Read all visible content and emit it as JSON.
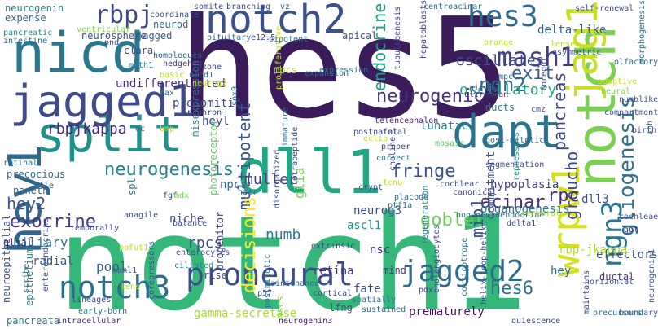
{
  "words": [
    {
      "text": "hes5",
      "color": "#3b1c5a"
    },
    {
      "text": "notch1",
      "color": "#35b779"
    },
    {
      "text": "split",
      "color": "#21918c"
    },
    {
      "text": "jagged1",
      "color": "#3e4a89"
    },
    {
      "text": "notch2",
      "color": "#3b518b"
    },
    {
      "text": "nicd",
      "color": "#2a788e"
    },
    {
      "text": "dll1",
      "color": "#22a785"
    },
    {
      "text": "dapt",
      "color": "#2c728e"
    },
    {
      "text": "hey1",
      "color": "#31668e"
    },
    {
      "text": "notch3",
      "color": "#2d708e"
    },
    {
      "text": "proneural",
      "color": "#3d4e8a"
    },
    {
      "text": "jagged2",
      "color": "#2f6c8e"
    },
    {
      "text": "wrpw1",
      "color": "#d5e21a"
    },
    {
      "text": "notch",
      "color": "#7ad151"
    },
    {
      "text": "jag1",
      "color": "#c8e020"
    },
    {
      "text": "hes3",
      "color": "#31688e"
    },
    {
      "text": "rbpj",
      "color": "#3e4989"
    },
    {
      "text": "mash1",
      "color": "#443983"
    },
    {
      "text": "ngn3",
      "color": "#2a768e"
    },
    {
      "text": "neurogenesis",
      "color": "#26828e"
    },
    {
      "text": "neurogenic",
      "color": "#46327e"
    },
    {
      "text": "exocrine",
      "color": "#453781"
    },
    {
      "text": "hey2",
      "color": "#3b528b"
    },
    {
      "text": "rbpjkappa",
      "color": "#482878"
    },
    {
      "text": "multipotent",
      "color": "#39568c"
    },
    {
      "text": "endocrine",
      "color": "#1f9e89"
    },
    {
      "text": "gliogenesis",
      "color": "#2e6e8e"
    },
    {
      "text": "pancreas",
      "color": "#3f4788"
    },
    {
      "text": "ngn2",
      "color": "#31688e"
    },
    {
      "text": "exit",
      "color": "#34618d"
    },
    {
      "text": "oscillatory",
      "color": "#22a884"
    },
    {
      "text": "oscillates",
      "color": "#3d4e8a"
    },
    {
      "text": "delta-like",
      "color": "#355f8d"
    },
    {
      "text": "decisions",
      "color": "#fde725"
    },
    {
      "text": "groucho",
      "color": "#404688"
    },
    {
      "text": "rpc",
      "color": "#472d7b"
    },
    {
      "text": "acinar",
      "color": "#472c7a"
    },
    {
      "text": "fringe",
      "color": "#3b518b"
    },
    {
      "text": "goblet",
      "color": "#6ccd5a"
    },
    {
      "text": "numb",
      "color": "#29798e"
    },
    {
      "text": "glia",
      "color": "#75d054"
    },
    {
      "text": "muller",
      "color": "#433e85"
    },
    {
      "text": "mib1",
      "color": "#3d4d8a"
    },
    {
      "text": "hes6",
      "color": "#2d708e"
    },
    {
      "text": "rpcs",
      "color": "#3b528b"
    },
    {
      "text": "lunatic",
      "color": "#25838e"
    },
    {
      "text": "undifferentiated",
      "color": "#472d7b"
    },
    {
      "text": "neuroepithelial",
      "color": "#3b518b"
    },
    {
      "text": "pool",
      "color": "#345e8d"
    },
    {
      "text": "biliary",
      "color": "#2c728e"
    },
    {
      "text": "radial",
      "color": "#375a8c"
    },
    {
      "text": "presomitic",
      "color": "#3f4889"
    },
    {
      "text": "ductal",
      "color": "#46337f"
    },
    {
      "text": "effectors",
      "color": "#3b528b"
    },
    {
      "text": "ascl1",
      "color": "#1f988b"
    },
    {
      "text": "fate",
      "color": "#3e4a89"
    },
    {
      "text": "gamma-secretase",
      "color": "#a8db34"
    },
    {
      "text": "pancreata",
      "color": "#287c8e"
    },
    {
      "text": "prematurely",
      "color": "#471063"
    },
    {
      "text": "heyl",
      "color": "#3e4989"
    },
    {
      "text": "clara",
      "color": "#3f4889"
    },
    {
      "text": "mpcs",
      "color": "#b4de2c"
    },
    {
      "text": "dll3",
      "color": "#3b528b"
    },
    {
      "text": "commitment",
      "color": "#3b518b"
    },
    {
      "text": "organogenesis",
      "color": "#2c728e"
    },
    {
      "text": "hypoplasia",
      "color": "#424086"
    },
    {
      "text": "nscs",
      "color": "#8ed645"
    },
    {
      "text": "neurog3",
      "color": "#3e4c8a"
    },
    {
      "text": "nsc",
      "color": "#472f7d"
    },
    {
      "text": "retina",
      "color": "#443a83"
    },
    {
      "text": "progenitor",
      "color": "#414487"
    },
    {
      "text": "mind",
      "color": "#453882"
    },
    {
      "text": "lfng",
      "color": "#39568c"
    },
    {
      "text": "rbp-jkappa",
      "color": "#addc30"
    },
    {
      "text": "hey",
      "color": "#31688e"
    },
    {
      "text": "precocious",
      "color": "#2e6f8e"
    },
    {
      "text": "paneth",
      "color": "#31668e"
    },
    {
      "text": "glial",
      "color": "#46307e"
    },
    {
      "text": "niche",
      "color": "#3f4889"
    },
    {
      "text": "npcs",
      "color": "#306a8e"
    },
    {
      "text": "spl",
      "color": "#2d718e"
    },
    {
      "text": "sox9",
      "color": "#2c738e"
    },
    {
      "text": "fgf",
      "color": "#3f4788"
    },
    {
      "text": "retinal",
      "color": "#2d718e"
    },
    {
      "text": "tle",
      "color": "#3b528b"
    },
    {
      "text": "neurogenin",
      "color": "#25848e"
    },
    {
      "text": "expense",
      "color": "#31678e"
    },
    {
      "text": "pancreatic",
      "color": "#238a8d"
    },
    {
      "text": "neurosphere",
      "color": "#3b528b"
    },
    {
      "text": "neurod",
      "color": "#2e6d8e"
    },
    {
      "text": "jagged",
      "color": "#375b8d"
    },
    {
      "text": "math1",
      "color": "#26818e"
    },
    {
      "text": "homologues",
      "color": "#31678e"
    },
    {
      "text": "hedgehog",
      "color": "#433e85"
    },
    {
      "text": "basic",
      "color": "#bddf26"
    },
    {
      "text": "apical",
      "color": "#3b528b"
    },
    {
      "text": "ducts",
      "color": "#2a778e"
    },
    {
      "text": "bipotent",
      "color": "#2d708e"
    },
    {
      "text": "e12.5",
      "color": "#404688"
    },
    {
      "text": "zone",
      "color": "#3f4889"
    },
    {
      "text": "expansion",
      "color": "#31688e"
    },
    {
      "text": "self-renewal",
      "color": "#3e4a89"
    },
    {
      "text": "centroacinar",
      "color": "#2e6e8e"
    },
    {
      "text": "hepatoblasts",
      "color": "#45377f"
    },
    {
      "text": "orange",
      "color": "#c2df23"
    },
    {
      "text": "ultradian",
      "color": "#472d7b"
    },
    {
      "text": "telencephalon",
      "color": "#482173"
    },
    {
      "text": "crypt",
      "color": "#3c4f8a"
    },
    {
      "text": "segmentation",
      "color": "#3e4a89"
    },
    {
      "text": "morphogenesis",
      "color": "#2e6e8e"
    },
    {
      "text": "numblike",
      "color": "#3b528b"
    },
    {
      "text": "repressors",
      "color": "#21908d"
    },
    {
      "text": "proper",
      "color": "#3f4889"
    },
    {
      "text": "mosaic",
      "color": "#5ec962"
    },
    {
      "text": "post-mitotic",
      "color": "#31678e"
    },
    {
      "text": "compartment",
      "color": "#3b528b"
    },
    {
      "text": "birth",
      "color": "#414487"
    },
    {
      "text": "fetal",
      "color": "#3e4989"
    },
    {
      "text": "correct",
      "color": "#2c728e"
    },
    {
      "text": "placode",
      "color": "#31678e"
    },
    {
      "text": "cochlear",
      "color": "#3b528b"
    },
    {
      "text": "canonical",
      "color": "#414487"
    },
    {
      "text": "non-neuroendocrine",
      "color": "#31688e"
    },
    {
      "text": "delta1",
      "color": "#3e4989"
    },
    {
      "text": "cerebral",
      "color": "#a5db36"
    },
    {
      "text": "regeneration",
      "color": "#26828e"
    },
    {
      "text": "helix-loop-helix",
      "color": "#3b528b"
    },
    {
      "text": "corticotrope",
      "color": "#2c728e"
    },
    {
      "text": "cholangiocytes",
      "color": "#414487"
    },
    {
      "text": "pdx1",
      "color": "#3e4989"
    },
    {
      "text": "horizontal",
      "color": "#3b528b"
    },
    {
      "text": "maintains",
      "color": "#414487"
    },
    {
      "text": "boundary",
      "color": "#3b528b"
    },
    {
      "text": "quiescence",
      "color": "#3e4a89"
    },
    {
      "text": "neurogenin3",
      "color": "#482173"
    },
    {
      "text": "spatially",
      "color": "#2c728e"
    },
    {
      "text": "sustained",
      "color": "#31678e"
    },
    {
      "text": "intracellular",
      "color": "#46327e"
    },
    {
      "text": "lineages",
      "color": "#414487"
    },
    {
      "text": "early-born",
      "color": "#2c728e"
    },
    {
      "text": "corepressors",
      "color": "#3b528b"
    },
    {
      "text": "ciliated",
      "color": "#26828e"
    },
    {
      "text": "rise",
      "color": "#3e4989"
    },
    {
      "text": "enterocytes",
      "color": "#3b528b"
    },
    {
      "text": "extrinsic",
      "color": "#414487"
    },
    {
      "text": "maintenance",
      "color": "#31688e"
    },
    {
      "text": "p57",
      "color": "#3b528b"
    },
    {
      "text": "cortical",
      "color": "#414487"
    },
    {
      "text": "postmitotic",
      "color": "#2c728e"
    },
    {
      "text": "disorganized",
      "color": "#3e4a89"
    },
    {
      "text": "tetrapeptide",
      "color": "#3b528b"
    },
    {
      "text": "immature",
      "color": "#2e6e8e"
    },
    {
      "text": "maml1",
      "color": "#3b528b"
    },
    {
      "text": "pofut1",
      "color": "#c2df23"
    },
    {
      "text": "lens",
      "color": "#b8de29"
    },
    {
      "text": "epithelium",
      "color": "#238a8d"
    },
    {
      "text": "balance",
      "color": "#3e4a89"
    },
    {
      "text": "temporally",
      "color": "#3f4889"
    },
    {
      "text": "photoreceptor",
      "color": "#5ec962"
    },
    {
      "text": "hair",
      "color": "#31678e"
    },
    {
      "text": "misexpression",
      "color": "#26818e"
    },
    {
      "text": "ventricular",
      "color": "#7ad151"
    },
    {
      "text": "intestine",
      "color": "#31678e"
    },
    {
      "text": "coordinate",
      "color": "#3b528b"
    },
    {
      "text": "somite",
      "color": "#414487"
    },
    {
      "text": "branching",
      "color": "#3e4a89"
    },
    {
      "text": "pituitary",
      "color": "#31678e"
    },
    {
      "text": "neurog2",
      "color": "#b8de29"
    },
    {
      "text": "nicd1",
      "color": "#31678e"
    },
    {
      "text": "rax",
      "color": "#2c728e"
    },
    {
      "text": "nephron",
      "color": "#3b528b"
    },
    {
      "text": "proliferative",
      "color": "#c2df23"
    },
    {
      "text": "tubulogenesis",
      "color": "#414487"
    },
    {
      "text": "mpc",
      "color": "#31678e"
    },
    {
      "text": "airway",
      "color": "#3e4a89"
    },
    {
      "text": "lenses",
      "color": "#b8de29"
    },
    {
      "text": "asymmetric",
      "color": "#3b528b"
    },
    {
      "text": "olfactory",
      "color": "#31678e"
    },
    {
      "text": "neural",
      "color": "#7ad151"
    },
    {
      "text": "adaptive",
      "color": "#c8e020"
    },
    {
      "text": "foregut",
      "color": "#3e4989"
    },
    {
      "text": "ptf1a",
      "color": "#2c728e"
    },
    {
      "text": "choline",
      "color": "#414487"
    },
    {
      "text": "scribe",
      "color": "#31678e"
    },
    {
      "text": "enteroendocrine",
      "color": "#3b528b"
    },
    {
      "text": "shh",
      "color": "#31688e"
    },
    {
      "text": "cochleae",
      "color": "#3e4a89"
    },
    {
      "text": "gut",
      "color": "#3e4989"
    },
    {
      "text": "precursors",
      "color": "#2c728e"
    },
    {
      "text": "neurogenin1",
      "color": "#3b528b"
    },
    {
      "text": "vz",
      "color": "#31678e"
    },
    {
      "text": "tenu",
      "color": "#c2df23"
    },
    {
      "text": "oc",
      "color": "#31678e"
    },
    {
      "text": "cmz",
      "color": "#3b528b"
    },
    {
      "text": "bmp",
      "color": "#c2df23"
    },
    {
      "text": "mdx",
      "color": "#7ad151"
    },
    {
      "text": "expression",
      "color": "#2c728e"
    },
    {
      "text": "eclip",
      "color": "#b8de29"
    },
    {
      "text": "pnd",
      "color": "#3b528b"
    },
    {
      "text": "postnatal",
      "color": "#3e4a89"
    },
    {
      "text": "anagile",
      "color": "#3b528b"
    },
    {
      "text": "coupled",
      "color": "#414487"
    }
  ]
}
